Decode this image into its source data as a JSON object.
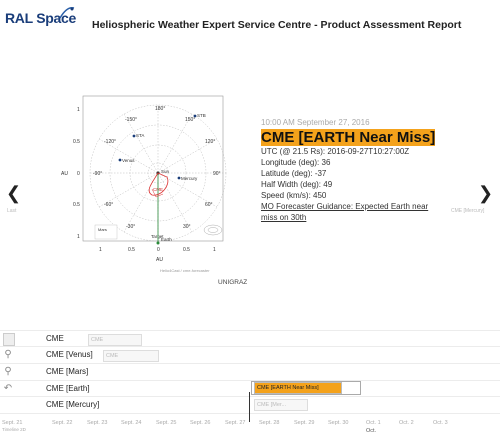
{
  "header": {
    "logo_text": "RAL Space",
    "title": "Heliospheric Weather Expert Service Centre - Product Assessment Report"
  },
  "plot": {
    "planets": [
      "Venus",
      "Mercury",
      "Mars",
      "Earth",
      "Sun",
      "STA",
      "STB",
      "Target",
      "CME"
    ],
    "angles": [
      "180°",
      "-150°",
      "150°",
      "-120°",
      "120°",
      "-90°",
      "90°",
      "-60°",
      "60°",
      "-30°",
      "30°",
      "0°"
    ],
    "x_ticks": [
      "1",
      "0.5",
      "0",
      "0.5",
      "1"
    ],
    "y_ticks": [
      "1",
      "0.5",
      "0",
      "0.5",
      "1"
    ],
    "axis_label_x": "AU",
    "axis_label_y": "AU",
    "credit": "Helio4Cast / cme-forecaster",
    "institution": "UNIGRAZ"
  },
  "nav": {
    "prev_label": "Last",
    "next_label": "CME [Mercury]"
  },
  "event": {
    "timestamp": "10:00 AM September 27, 2016",
    "headline": "CME [EARTH Near Miss]",
    "utc": "UTC (@ 21.5 Rs): 2016-09-27T10:27:00Z",
    "longitude": "Longitude (deg): 36",
    "latitude": "Latitude (deg): -37",
    "half_width": "Half Width (deg): 49",
    "speed": "Speed (km/s): 450",
    "guidance": "MO Forecaster Guidance: Expected Earth near miss on 30th"
  },
  "timeline": {
    "rows": [
      {
        "label": "CME",
        "item": "CME"
      },
      {
        "label": "CME [Venus]",
        "item": "CME"
      },
      {
        "label": "CME [Mars]",
        "item": ""
      },
      {
        "label": "CME [Earth]",
        "item": "CME [EARTH Near Miss]"
      },
      {
        "label": "CME [Mercury]",
        "item": "CME [Mer..."
      }
    ],
    "ticks": [
      "Sept. 21",
      "Sept. 22",
      "Sept. 23",
      "Sept. 24",
      "Sept. 25",
      "Sept. 26",
      "Sept. 27",
      "Sept. 28",
      "Sept. 29",
      "Sept. 30",
      "Oct. 1",
      "Oct. 2",
      "Oct. 3"
    ],
    "month": "Oct.",
    "bottom_left": "Timeline 2D"
  }
}
